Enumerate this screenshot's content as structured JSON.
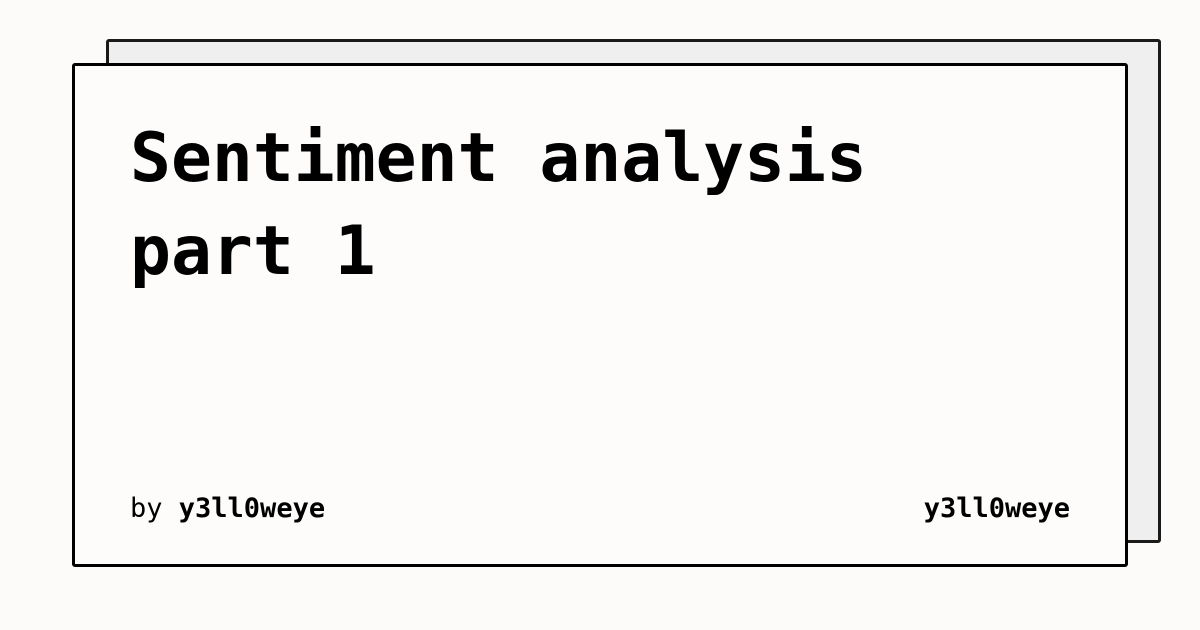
{
  "card": {
    "title_line1": "Sentiment analysis",
    "title_line2": "part 1",
    "byline_prefix": "by",
    "author": "y3ll0weye",
    "site_name": "y3ll0weye"
  },
  "colors": {
    "background": "#fcfbf9",
    "card": "#fdfcfa",
    "shadow_card": "#efefef",
    "border": "#000000",
    "text": "#000000"
  }
}
